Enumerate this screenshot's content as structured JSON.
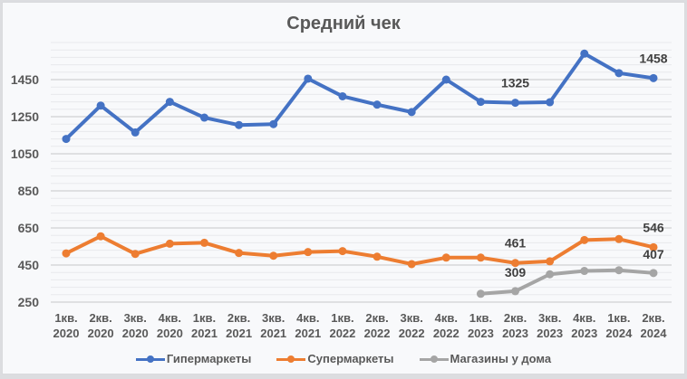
{
  "chart_data": {
    "type": "line",
    "title": "Средний чек",
    "xlabel": "",
    "ylabel": "",
    "ylim": [
      250,
      1650
    ],
    "yticks": [
      250,
      450,
      650,
      850,
      1050,
      1250,
      1450
    ],
    "grid": true,
    "legend_position": "bottom",
    "categories": [
      "1кв. 2020",
      "2кв. 2020",
      "3кв. 2020",
      "4кв. 2020",
      "1кв. 2021",
      "2кв. 2021",
      "3кв. 2021",
      "4кв. 2021",
      "1кв. 2022",
      "2кв. 2022",
      "3кв. 2022",
      "4кв. 2022",
      "1кв. 2023",
      "2кв. 2023",
      "3кв. 2023",
      "4кв. 2023",
      "1кв. 2024",
      "2кв. 2024"
    ],
    "series": [
      {
        "name": "Гипермаркеты",
        "color": "#4472c4",
        "values": [
          1130,
          1310,
          1165,
          1330,
          1245,
          1205,
          1210,
          1455,
          1360,
          1315,
          1275,
          1450,
          1330,
          1325,
          1328,
          1590,
          1485,
          1458
        ],
        "data_labels": {
          "13": "1325",
          "17": "1458"
        }
      },
      {
        "name": "Супермаркеты",
        "color": "#ed7d31",
        "values": [
          513,
          605,
          510,
          565,
          570,
          515,
          500,
          520,
          525,
          495,
          455,
          490,
          490,
          461,
          470,
          585,
          590,
          546
        ],
        "data_labels": {
          "13": "461",
          "17": "546"
        }
      },
      {
        "name": "Магазины у дома",
        "color": "#a5a5a5",
        "values": [
          null,
          null,
          null,
          null,
          null,
          null,
          null,
          null,
          null,
          null,
          null,
          null,
          295,
          309,
          400,
          418,
          422,
          407
        ],
        "data_labels": {
          "13": "309",
          "17": "407"
        }
      }
    ]
  },
  "title": "Средний чек",
  "legend": [
    {
      "label": "Гипермаркеты",
      "color": "#4472c4"
    },
    {
      "label": "Супермаркеты",
      "color": "#ed7d31"
    },
    {
      "label": "Магазины у дома",
      "color": "#a5a5a5"
    }
  ]
}
